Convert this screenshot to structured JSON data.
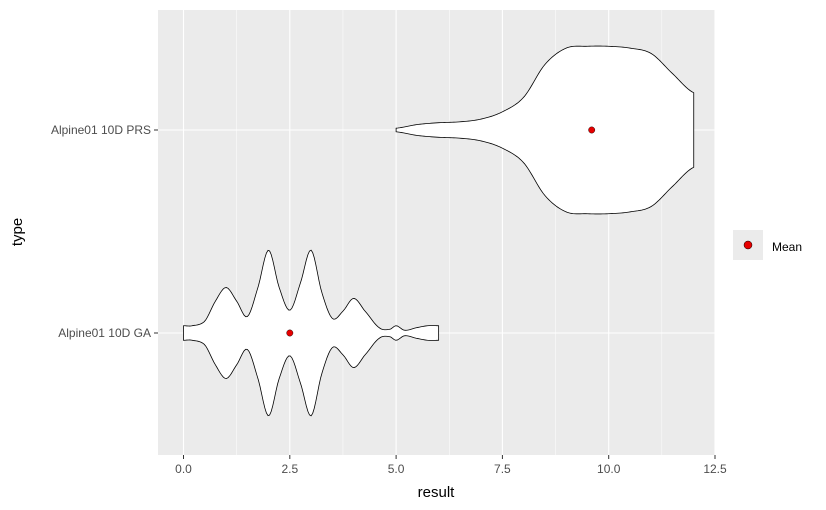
{
  "chart_data": {
    "type": "violin",
    "xlabel": "result",
    "ylabel": "type",
    "xlim": [
      -0.6,
      12.5
    ],
    "x_ticks": [
      0.0,
      2.5,
      5.0,
      7.5,
      10.0,
      12.5
    ],
    "x_tick_labels": [
      "0.0",
      "2.5",
      "5.0",
      "7.5",
      "10.0",
      "12.5"
    ],
    "categories": [
      "Alpine01 10D GA",
      "Alpine01 10D PRS"
    ],
    "grid": true,
    "legend": {
      "placement": "right",
      "entries": [
        {
          "label": "Mean",
          "color": "#e60000"
        }
      ]
    },
    "violins": [
      {
        "category": "Alpine01 10D GA",
        "range": [
          0.0,
          6.0
        ],
        "mean": 2.5,
        "density_profile": [
          [
            0.0,
            0.08
          ],
          [
            0.2,
            0.08
          ],
          [
            0.5,
            0.13
          ],
          [
            0.75,
            0.35
          ],
          [
            1.0,
            0.5
          ],
          [
            1.25,
            0.35
          ],
          [
            1.5,
            0.18
          ],
          [
            1.75,
            0.5
          ],
          [
            2.0,
            0.91
          ],
          [
            2.25,
            0.5
          ],
          [
            2.5,
            0.25
          ],
          [
            2.75,
            0.55
          ],
          [
            3.0,
            0.91
          ],
          [
            3.25,
            0.45
          ],
          [
            3.5,
            0.16
          ],
          [
            3.75,
            0.24
          ],
          [
            4.0,
            0.38
          ],
          [
            4.25,
            0.25
          ],
          [
            4.6,
            0.06
          ],
          [
            4.85,
            0.04
          ],
          [
            5.0,
            0.08
          ],
          [
            5.2,
            0.03
          ],
          [
            5.5,
            0.06
          ],
          [
            5.75,
            0.08
          ],
          [
            6.0,
            0.08
          ]
        ]
      },
      {
        "category": "Alpine01 10D PRS",
        "range": [
          5.0,
          12.0
        ],
        "mean": 9.6,
        "density_profile": [
          [
            5.0,
            0.02
          ],
          [
            5.5,
            0.06
          ],
          [
            6.0,
            0.08
          ],
          [
            6.5,
            0.09
          ],
          [
            7.0,
            0.12
          ],
          [
            7.5,
            0.2
          ],
          [
            8.0,
            0.36
          ],
          [
            8.5,
            0.72
          ],
          [
            9.0,
            0.9
          ],
          [
            9.5,
            0.92
          ],
          [
            10.0,
            0.92
          ],
          [
            10.5,
            0.9
          ],
          [
            11.0,
            0.84
          ],
          [
            11.5,
            0.62
          ],
          [
            12.0,
            0.41
          ]
        ]
      }
    ]
  },
  "colors": {
    "panel_bg": "#ebebeb",
    "grid_major": "#ffffff",
    "violin_fill": "#ffffff",
    "violin_stroke": "#000000",
    "mean_point": "#e60000"
  }
}
